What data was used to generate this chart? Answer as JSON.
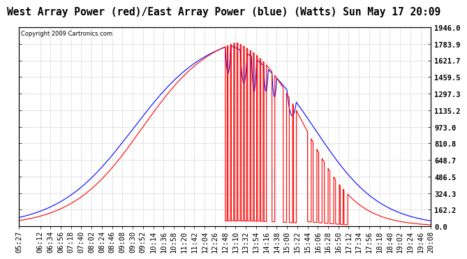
{
  "title": "West Array Power (red)/East Array Power (blue) (Watts) Sun May 17 20:09",
  "copyright": "Copyright 2009 Cartronics.com",
  "ymax": 1946.0,
  "ymin": 0.0,
  "yticks": [
    0.0,
    162.2,
    324.3,
    486.5,
    648.7,
    810.8,
    973.0,
    1135.2,
    1297.3,
    1459.5,
    1621.7,
    1783.9,
    1946.0
  ],
  "ytick_labels": [
    "0.0",
    "162.2",
    "324.3",
    "486.5",
    "648.7",
    "810.8",
    "973.0",
    "1135.2",
    "1297.3",
    "1459.5",
    "1621.7",
    "1783.9",
    "1946.0"
  ],
  "background_color": "#ffffff",
  "grid_color": "#aaaaaa",
  "red_color": "#ff0000",
  "blue_color": "#0000ff",
  "tick_label_fontsize": 7.5,
  "x_tick_labels": [
    "05:27",
    "06:12",
    "06:34",
    "06:56",
    "07:18",
    "07:40",
    "08:02",
    "08:24",
    "08:46",
    "09:08",
    "09:30",
    "09:52",
    "10:14",
    "10:36",
    "10:58",
    "11:20",
    "11:42",
    "12:04",
    "12:26",
    "12:48",
    "13:10",
    "13:32",
    "13:54",
    "14:16",
    "14:38",
    "15:00",
    "15:22",
    "15:44",
    "16:06",
    "16:28",
    "16:50",
    "17:12",
    "17:34",
    "17:56",
    "18:18",
    "18:40",
    "19:02",
    "19:24",
    "19:46",
    "20:08"
  ]
}
